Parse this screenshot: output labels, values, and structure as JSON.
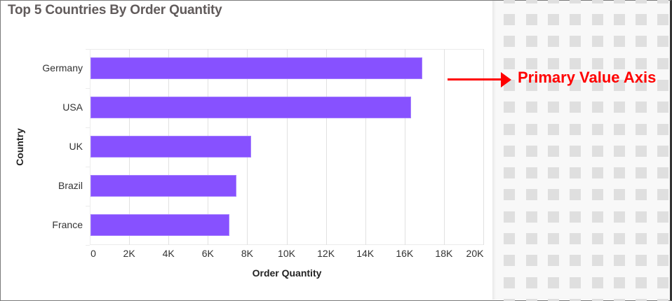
{
  "chart_data": {
    "type": "bar",
    "orientation": "horizontal",
    "title": "Top 5 Countries By Order Quantity",
    "xlabel": "Order Quantity",
    "ylabel": "Country",
    "categories": [
      "Germany",
      "USA",
      "UK",
      "Brazil",
      "France"
    ],
    "values": [
      16850,
      16300,
      8150,
      7400,
      7050
    ],
    "xlim": [
      0,
      20000
    ],
    "x_ticks": [
      "0",
      "2K",
      "4K",
      "6K",
      "8K",
      "10K",
      "12K",
      "14K",
      "16K",
      "18K",
      "20K"
    ],
    "grid": true,
    "bar_color": "#8751ff",
    "legend": null
  },
  "annotation": {
    "label": "Primary Value Axis",
    "color": "#ff0000"
  }
}
